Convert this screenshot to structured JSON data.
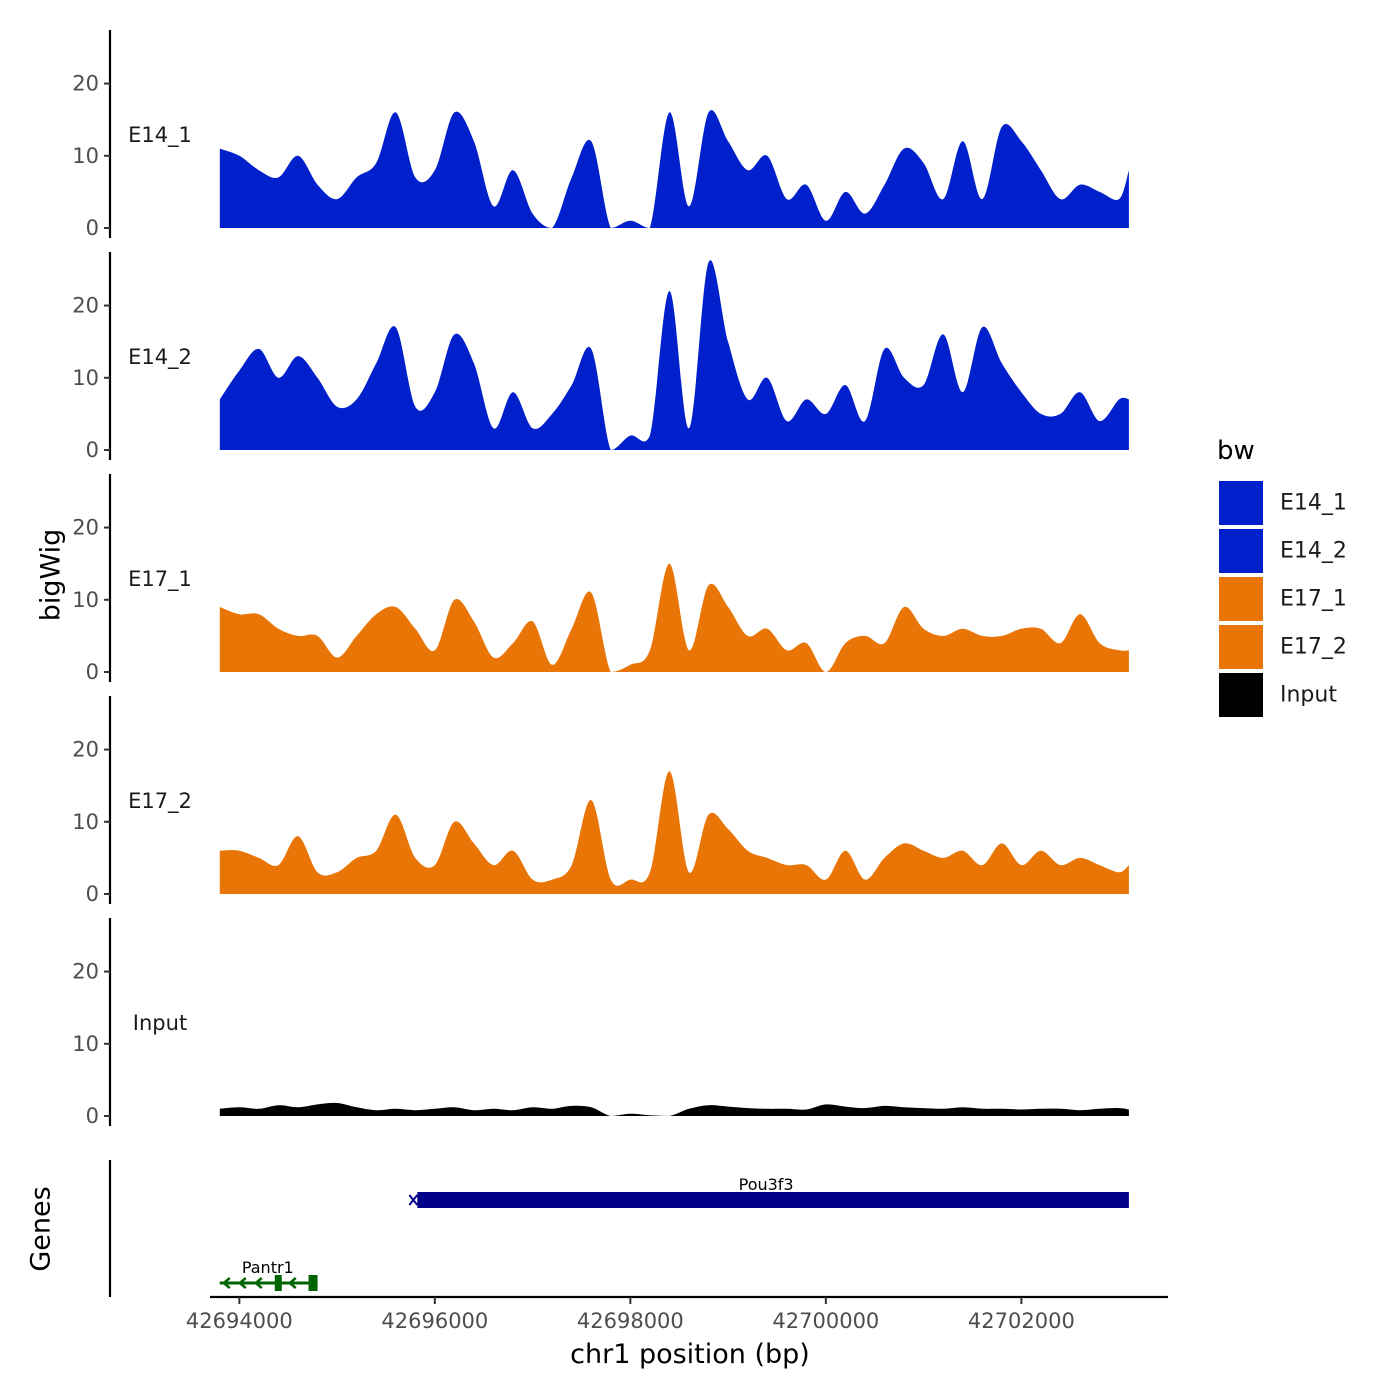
{
  "chart_data": {
    "type": "area",
    "title": "",
    "xlabel": "chr1 position (bp)",
    "ylabel": "bigWig",
    "gene_track_label": "Genes",
    "x_ticks": [
      42694000,
      42696000,
      42698000,
      42700000,
      42702000
    ],
    "x_tick_labels": [
      "42694000",
      "42696000",
      "42698000",
      "42700000",
      "42702000"
    ],
    "xlim": [
      42693700,
      42703500
    ],
    "y_ticks": [
      0,
      10,
      20
    ],
    "y_tick_labels": [
      "0",
      "10",
      "20"
    ],
    "ylim": [
      0,
      27
    ],
    "legend": {
      "title": "bw",
      "entries": [
        {
          "label": "E14_1",
          "color": "#0020CC"
        },
        {
          "label": "E14_2",
          "color": "#0020CC"
        },
        {
          "label": "E17_1",
          "color": "#E87505"
        },
        {
          "label": "E17_2",
          "color": "#E87505"
        },
        {
          "label": "Input",
          "color": "#000000"
        }
      ]
    },
    "x": [
      42693800,
      42694000,
      42694200,
      42694400,
      42694600,
      42694800,
      42695000,
      42695200,
      42695400,
      42695600,
      42695800,
      42696000,
      42696200,
      42696400,
      42696600,
      42696800,
      42697000,
      42697200,
      42697400,
      42697600,
      42697800,
      42698000,
      42698200,
      42698400,
      42698600,
      42698800,
      42699000,
      42699200,
      42699400,
      42699600,
      42699800,
      42700000,
      42700200,
      42700400,
      42700600,
      42700800,
      42701000,
      42701200,
      42701400,
      42701600,
      42701800,
      42702000,
      42702200,
      42702400,
      42702600,
      42702800,
      42703000,
      42703100
    ],
    "series": [
      {
        "name": "E14_1",
        "color": "#0020CC",
        "values": [
          11,
          10,
          8,
          7,
          10,
          6,
          4,
          7,
          9,
          16,
          7,
          8,
          16,
          12,
          3,
          8,
          2,
          0,
          7,
          12,
          0,
          1,
          0,
          16,
          3,
          16,
          12,
          8,
          10,
          4,
          6,
          1,
          5,
          2,
          6,
          11,
          9,
          4,
          12,
          4,
          14,
          12,
          8,
          4,
          6,
          5,
          4,
          8
        ]
      },
      {
        "name": "E14_2",
        "color": "#0020CC",
        "values": [
          7,
          11,
          14,
          10,
          13,
          10,
          6,
          7,
          12,
          17,
          6,
          8,
          16,
          12,
          3,
          8,
          3,
          5,
          9,
          14,
          0,
          2,
          2,
          22,
          3,
          26,
          15,
          7,
          10,
          4,
          7,
          5,
          9,
          4,
          14,
          10,
          9,
          16,
          8,
          17,
          12,
          8,
          5,
          5,
          8,
          4,
          7,
          7
        ]
      },
      {
        "name": "E17_1",
        "color": "#E87505",
        "values": [
          9,
          8,
          8,
          6,
          5,
          5,
          2,
          5,
          8,
          9,
          6,
          3,
          10,
          7,
          2,
          4,
          7,
          1,
          6,
          11,
          0,
          1,
          3,
          15,
          3,
          12,
          9,
          5,
          6,
          3,
          4,
          0,
          4,
          5,
          4,
          9,
          6,
          5,
          6,
          5,
          5,
          6,
          6,
          4,
          8,
          4,
          3,
          3
        ]
      },
      {
        "name": "E17_2",
        "color": "#E87505",
        "values": [
          6,
          6,
          5,
          4,
          8,
          3,
          3,
          5,
          6,
          11,
          5,
          4,
          10,
          7,
          4,
          6,
          2,
          2,
          4,
          13,
          2,
          2,
          3,
          17,
          3,
          11,
          9,
          6,
          5,
          4,
          4,
          2,
          6,
          2,
          5,
          7,
          6,
          5,
          6,
          4,
          7,
          4,
          6,
          4,
          5,
          4,
          3,
          4
        ]
      },
      {
        "name": "Input",
        "color": "#000000",
        "values": [
          1,
          1.2,
          1,
          1.5,
          1.2,
          1.6,
          1.8,
          1.2,
          0.8,
          1,
          0.8,
          1,
          1.2,
          0.8,
          1,
          0.8,
          1.2,
          1,
          1.4,
          1.2,
          0,
          0.3,
          0.1,
          0,
          1,
          1.5,
          1.3,
          1.1,
          1,
          1,
          0.9,
          1.6,
          1.3,
          1.1,
          1.4,
          1.2,
          1.1,
          1,
          1.2,
          1,
          1,
          0.9,
          1,
          1,
          0.8,
          1,
          1.1,
          0.9
        ]
      }
    ],
    "genes": [
      {
        "name": "Pou3f3",
        "start": 42695780,
        "end": 42703100,
        "strand": "+",
        "color": "#00008B",
        "lane": 1
      },
      {
        "name": "Pantr1",
        "start": 42693800,
        "end": 42694800,
        "strand": "-",
        "color": "#006400",
        "lane": 2
      }
    ]
  }
}
